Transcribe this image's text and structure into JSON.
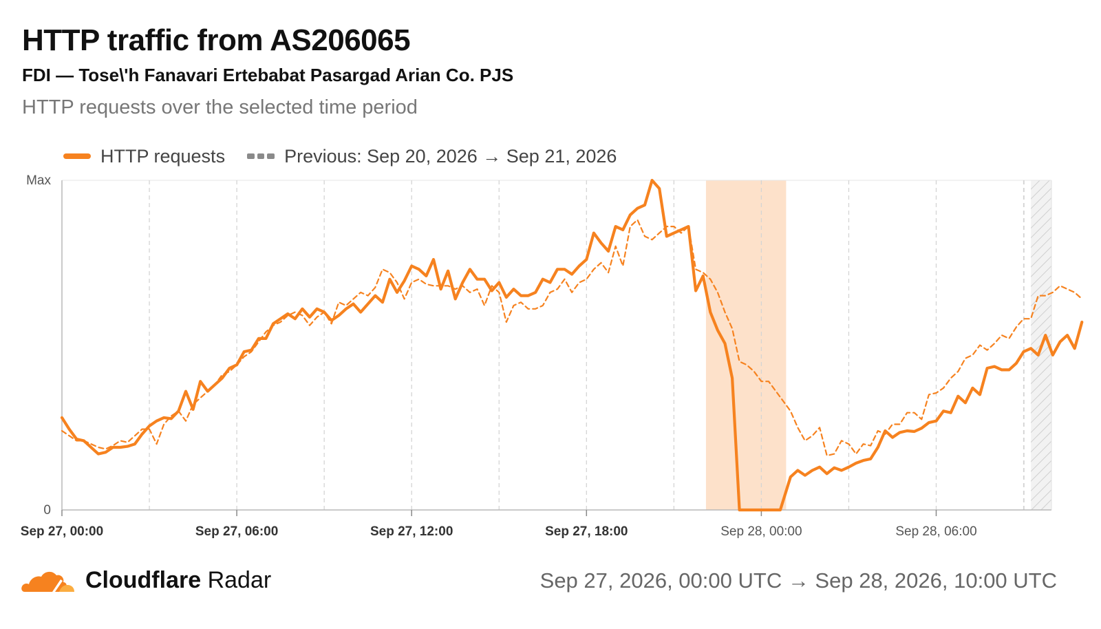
{
  "header": {
    "title": "HTTP traffic from AS206065",
    "subtitle": "FDI — Tose\\'h Fanavari Ertebabat Pasargad Arian Co. PJS",
    "description": "HTTP requests over the selected time period"
  },
  "legend": {
    "current": "HTTP requests",
    "previous": "Previous: Sep 20, 2026 → Sep 21, 2026"
  },
  "footer": {
    "brand_bold": "Cloudflare",
    "brand_rest": " Radar",
    "time_range": "Sep 27, 2026, 00:00 UTC → Sep 28, 2026, 10:00 UTC"
  },
  "colors": {
    "series": "#f6821f",
    "outage_band": "#fde1ca",
    "grid": "#d4d4d4",
    "axis": "#b8b8b8"
  },
  "chart_data": {
    "type": "line",
    "x_unit": "hours since Sep 27, 00:00 UTC",
    "xlim": [
      0,
      34
    ],
    "ylim": [
      0,
      1
    ],
    "y_tick_labels": [
      "0",
      "Max"
    ],
    "x_ticks": [
      {
        "x": 0,
        "label": "Sep 27, 00:00",
        "bold": true
      },
      {
        "x": 6,
        "label": "Sep 27, 06:00",
        "bold": true
      },
      {
        "x": 12,
        "label": "Sep 27, 12:00",
        "bold": true
      },
      {
        "x": 18,
        "label": "Sep 27, 18:00",
        "bold": true
      },
      {
        "x": 24,
        "label": "Sep 28, 00:00",
        "bold": false
      },
      {
        "x": 30,
        "label": "Sep 28, 06:00",
        "bold": false
      }
    ],
    "grid_lines_x": [
      3,
      6,
      9,
      12,
      15,
      18,
      21,
      24,
      27,
      30,
      33
    ],
    "highlight_band": [
      22.1,
      24.85
    ],
    "hatched_region": [
      33.25,
      34
    ],
    "series": [
      {
        "name": "HTTP requests",
        "style": "solid",
        "points": [
          [
            0,
            0.28
          ],
          [
            0.25,
            0.245
          ],
          [
            0.5,
            0.215
          ],
          [
            0.75,
            0.21
          ],
          [
            1,
            0.19
          ],
          [
            1.25,
            0.17
          ],
          [
            1.5,
            0.175
          ],
          [
            1.75,
            0.19
          ],
          [
            2,
            0.19
          ],
          [
            2.25,
            0.193
          ],
          [
            2.5,
            0.2
          ],
          [
            2.75,
            0.23
          ],
          [
            3,
            0.255
          ],
          [
            3.25,
            0.27
          ],
          [
            3.5,
            0.28
          ],
          [
            3.75,
            0.277
          ],
          [
            4,
            0.3
          ],
          [
            4.25,
            0.36
          ],
          [
            4.5,
            0.305
          ],
          [
            4.75,
            0.39
          ],
          [
            5,
            0.36
          ],
          [
            5.25,
            0.38
          ],
          [
            5.5,
            0.4
          ],
          [
            5.75,
            0.43
          ],
          [
            6,
            0.44
          ],
          [
            6.25,
            0.48
          ],
          [
            6.5,
            0.485
          ],
          [
            6.75,
            0.52
          ],
          [
            7,
            0.52
          ],
          [
            7.25,
            0.565
          ],
          [
            7.5,
            0.58
          ],
          [
            7.75,
            0.595
          ],
          [
            8,
            0.58
          ],
          [
            8.25,
            0.61
          ],
          [
            8.5,
            0.585
          ],
          [
            8.75,
            0.61
          ],
          [
            9,
            0.6
          ],
          [
            9.25,
            0.575
          ],
          [
            9.5,
            0.59
          ],
          [
            9.75,
            0.61
          ],
          [
            10,
            0.625
          ],
          [
            10.25,
            0.6
          ],
          [
            10.5,
            0.625
          ],
          [
            10.75,
            0.65
          ],
          [
            11,
            0.63
          ],
          [
            11.25,
            0.7
          ],
          [
            11.5,
            0.66
          ],
          [
            11.75,
            0.695
          ],
          [
            12,
            0.74
          ],
          [
            12.25,
            0.73
          ],
          [
            12.5,
            0.71
          ],
          [
            12.75,
            0.76
          ],
          [
            13,
            0.67
          ],
          [
            13.25,
            0.725
          ],
          [
            13.5,
            0.64
          ],
          [
            13.75,
            0.69
          ],
          [
            14,
            0.73
          ],
          [
            14.25,
            0.7
          ],
          [
            14.5,
            0.7
          ],
          [
            14.75,
            0.665
          ],
          [
            15,
            0.69
          ],
          [
            15.25,
            0.645
          ],
          [
            15.5,
            0.67
          ],
          [
            15.75,
            0.65
          ],
          [
            16,
            0.65
          ],
          [
            16.25,
            0.66
          ],
          [
            16.5,
            0.7
          ],
          [
            16.75,
            0.69
          ],
          [
            17,
            0.73
          ],
          [
            17.25,
            0.73
          ],
          [
            17.5,
            0.715
          ],
          [
            17.75,
            0.74
          ],
          [
            18,
            0.76
          ],
          [
            18.25,
            0.84
          ],
          [
            18.5,
            0.81
          ],
          [
            18.75,
            0.785
          ],
          [
            19,
            0.86
          ],
          [
            19.25,
            0.85
          ],
          [
            19.5,
            0.895
          ],
          [
            19.75,
            0.915
          ],
          [
            20,
            0.925
          ],
          [
            20.25,
            1.0
          ],
          [
            20.5,
            0.975
          ],
          [
            20.75,
            0.83
          ],
          [
            21,
            0.84
          ],
          [
            21.25,
            0.85
          ],
          [
            21.5,
            0.86
          ],
          [
            21.75,
            0.665
          ],
          [
            22,
            0.71
          ],
          [
            22.25,
            0.6
          ],
          [
            22.5,
            0.545
          ],
          [
            22.75,
            0.505
          ],
          [
            23,
            0.4
          ],
          [
            23.25,
            0.0
          ],
          [
            23.5,
            0.0
          ],
          [
            24.65,
            0.0
          ],
          [
            25,
            0.1
          ],
          [
            25.25,
            0.12
          ],
          [
            25.5,
            0.105
          ],
          [
            25.75,
            0.12
          ],
          [
            26,
            0.13
          ],
          [
            26.25,
            0.11
          ],
          [
            26.5,
            0.128
          ],
          [
            26.75,
            0.12
          ],
          [
            27,
            0.13
          ],
          [
            27.25,
            0.142
          ],
          [
            27.5,
            0.15
          ],
          [
            27.75,
            0.155
          ],
          [
            28,
            0.19
          ],
          [
            28.25,
            0.24
          ],
          [
            28.5,
            0.22
          ],
          [
            28.75,
            0.235
          ],
          [
            29,
            0.24
          ],
          [
            29.25,
            0.238
          ],
          [
            29.5,
            0.248
          ],
          [
            29.75,
            0.265
          ],
          [
            30,
            0.27
          ],
          [
            30.25,
            0.3
          ],
          [
            30.5,
            0.295
          ],
          [
            30.75,
            0.345
          ],
          [
            31,
            0.325
          ],
          [
            31.25,
            0.37
          ],
          [
            31.5,
            0.35
          ],
          [
            31.75,
            0.43
          ],
          [
            32,
            0.435
          ],
          [
            32.25,
            0.425
          ],
          [
            32.5,
            0.425
          ],
          [
            32.75,
            0.445
          ],
          [
            33,
            0.48
          ],
          [
            33.25,
            0.49
          ],
          [
            33.5,
            0.47
          ],
          [
            33.75,
            0.53
          ],
          [
            34,
            0.47
          ],
          [
            34.25,
            0.51
          ],
          [
            34.5,
            0.53
          ],
          [
            34.75,
            0.49
          ],
          [
            35,
            0.57
          ]
        ]
      },
      {
        "name": "Previous: Sep 20, 2026 → Sep 21, 2026",
        "style": "dashed",
        "points": [
          [
            0,
            0.24
          ],
          [
            0.25,
            0.225
          ],
          [
            0.5,
            0.21
          ],
          [
            0.75,
            0.21
          ],
          [
            1,
            0.2
          ],
          [
            1.25,
            0.19
          ],
          [
            1.5,
            0.185
          ],
          [
            1.75,
            0.195
          ],
          [
            2,
            0.21
          ],
          [
            2.25,
            0.205
          ],
          [
            2.5,
            0.225
          ],
          [
            2.75,
            0.245
          ],
          [
            3,
            0.245
          ],
          [
            3.25,
            0.2
          ],
          [
            3.5,
            0.26
          ],
          [
            3.75,
            0.285
          ],
          [
            4,
            0.3
          ],
          [
            4.25,
            0.27
          ],
          [
            4.5,
            0.32
          ],
          [
            4.75,
            0.34
          ],
          [
            5,
            0.36
          ],
          [
            5.25,
            0.38
          ],
          [
            5.5,
            0.41
          ],
          [
            5.75,
            0.42
          ],
          [
            6,
            0.44
          ],
          [
            6.25,
            0.465
          ],
          [
            6.5,
            0.48
          ],
          [
            6.75,
            0.51
          ],
          [
            7,
            0.54
          ],
          [
            7.25,
            0.56
          ],
          [
            7.5,
            0.57
          ],
          [
            7.75,
            0.59
          ],
          [
            8,
            0.6
          ],
          [
            8.25,
            0.59
          ],
          [
            8.5,
            0.56
          ],
          [
            8.75,
            0.585
          ],
          [
            9,
            0.6
          ],
          [
            9.25,
            0.565
          ],
          [
            9.5,
            0.63
          ],
          [
            9.75,
            0.62
          ],
          [
            10,
            0.64
          ],
          [
            10.25,
            0.66
          ],
          [
            10.5,
            0.65
          ],
          [
            10.75,
            0.675
          ],
          [
            11,
            0.73
          ],
          [
            11.25,
            0.72
          ],
          [
            11.5,
            0.69
          ],
          [
            11.75,
            0.64
          ],
          [
            12,
            0.69
          ],
          [
            12.25,
            0.7
          ],
          [
            12.5,
            0.685
          ],
          [
            12.75,
            0.68
          ],
          [
            13,
            0.68
          ],
          [
            13.25,
            0.68
          ],
          [
            13.5,
            0.67
          ],
          [
            13.75,
            0.68
          ],
          [
            14,
            0.66
          ],
          [
            14.25,
            0.67
          ],
          [
            14.5,
            0.62
          ],
          [
            14.75,
            0.68
          ],
          [
            15,
            0.66
          ],
          [
            15.25,
            0.57
          ],
          [
            15.5,
            0.62
          ],
          [
            15.75,
            0.63
          ],
          [
            16,
            0.61
          ],
          [
            16.25,
            0.61
          ],
          [
            16.5,
            0.62
          ],
          [
            16.75,
            0.66
          ],
          [
            17,
            0.67
          ],
          [
            17.25,
            0.7
          ],
          [
            17.5,
            0.66
          ],
          [
            17.75,
            0.69
          ],
          [
            18,
            0.7
          ],
          [
            18.25,
            0.73
          ],
          [
            18.5,
            0.75
          ],
          [
            18.75,
            0.72
          ],
          [
            19,
            0.8
          ],
          [
            19.25,
            0.74
          ],
          [
            19.5,
            0.86
          ],
          [
            19.75,
            0.88
          ],
          [
            20,
            0.83
          ],
          [
            20.25,
            0.82
          ],
          [
            20.5,
            0.84
          ],
          [
            20.75,
            0.86
          ],
          [
            21,
            0.86
          ],
          [
            21.25,
            0.84
          ],
          [
            21.5,
            0.86
          ],
          [
            21.75,
            0.73
          ],
          [
            22,
            0.72
          ],
          [
            22.25,
            0.7
          ],
          [
            22.5,
            0.66
          ],
          [
            22.75,
            0.6
          ],
          [
            23,
            0.55
          ],
          [
            23.25,
            0.45
          ],
          [
            23.5,
            0.44
          ],
          [
            23.75,
            0.42
          ],
          [
            24,
            0.39
          ],
          [
            24.25,
            0.39
          ],
          [
            24.5,
            0.36
          ],
          [
            24.75,
            0.33
          ],
          [
            25,
            0.3
          ],
          [
            25.25,
            0.25
          ],
          [
            25.5,
            0.21
          ],
          [
            25.75,
            0.225
          ],
          [
            26,
            0.25
          ],
          [
            26.25,
            0.165
          ],
          [
            26.5,
            0.17
          ],
          [
            26.75,
            0.21
          ],
          [
            27,
            0.2
          ],
          [
            27.25,
            0.17
          ],
          [
            27.5,
            0.2
          ],
          [
            27.75,
            0.195
          ],
          [
            28,
            0.24
          ],
          [
            28.25,
            0.23
          ],
          [
            28.5,
            0.26
          ],
          [
            28.75,
            0.26
          ],
          [
            29,
            0.295
          ],
          [
            29.25,
            0.295
          ],
          [
            29.5,
            0.275
          ],
          [
            29.75,
            0.35
          ],
          [
            30,
            0.355
          ],
          [
            30.25,
            0.37
          ],
          [
            30.5,
            0.4
          ],
          [
            30.75,
            0.42
          ],
          [
            31,
            0.46
          ],
          [
            31.25,
            0.47
          ],
          [
            31.5,
            0.5
          ],
          [
            31.75,
            0.485
          ],
          [
            32,
            0.505
          ],
          [
            32.25,
            0.53
          ],
          [
            32.5,
            0.52
          ],
          [
            32.75,
            0.555
          ],
          [
            33,
            0.58
          ],
          [
            33.25,
            0.58
          ],
          [
            33.5,
            0.65
          ],
          [
            33.75,
            0.65
          ],
          [
            34,
            0.66
          ],
          [
            34.25,
            0.68
          ],
          [
            34.5,
            0.67
          ],
          [
            34.75,
            0.66
          ],
          [
            35,
            0.64
          ]
        ]
      }
    ]
  }
}
